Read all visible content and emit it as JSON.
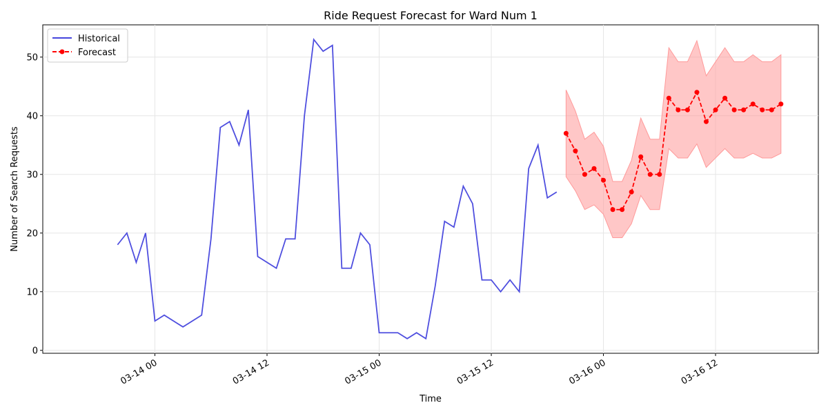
{
  "chart_data": {
    "type": "line",
    "title": "Ride Request Forecast for Ward Num 1",
    "xlabel": "Time",
    "ylabel": "Number of Search Requests",
    "x_axis": {
      "type": "time",
      "range": [
        "2025-03-13 12:00",
        "2025-03-16 23:00"
      ],
      "tick_values": [
        "2025-03-14 00:00",
        "2025-03-14 12:00",
        "2025-03-15 00:00",
        "2025-03-15 12:00",
        "2025-03-16 00:00",
        "2025-03-16 12:00"
      ],
      "tick_labels": [
        "03-14 00",
        "03-14 12",
        "03-15 00",
        "03-15 12",
        "03-16 00",
        "03-16 12"
      ]
    },
    "y_axis": {
      "range": [
        -0.5,
        55.5
      ],
      "ticks": [
        0,
        10,
        20,
        30,
        40,
        50
      ],
      "tick_labels": [
        "0",
        "10",
        "20",
        "30",
        "40",
        "50"
      ]
    },
    "grid": true,
    "legend": {
      "position": "top-left",
      "entries": [
        "Historical",
        "Forecast"
      ]
    },
    "series": [
      {
        "name": "Historical",
        "color": "#4444dd",
        "style": "solid",
        "x": [
          "2025-03-13 20:00",
          "2025-03-13 21:00",
          "2025-03-13 22:00",
          "2025-03-13 23:00",
          "2025-03-14 00:00",
          "2025-03-14 01:00",
          "2025-03-14 03:00",
          "2025-03-14 05:00",
          "2025-03-14 06:00",
          "2025-03-14 07:00",
          "2025-03-14 08:00",
          "2025-03-14 09:00",
          "2025-03-14 10:00",
          "2025-03-14 11:00",
          "2025-03-14 13:00",
          "2025-03-14 14:00",
          "2025-03-14 15:00",
          "2025-03-14 16:00",
          "2025-03-14 17:00",
          "2025-03-14 18:00",
          "2025-03-14 19:00",
          "2025-03-14 20:00",
          "2025-03-14 21:00",
          "2025-03-14 22:00",
          "2025-03-14 23:00",
          "2025-03-15 00:00",
          "2025-03-15 02:00",
          "2025-03-15 03:00",
          "2025-03-15 04:00",
          "2025-03-15 05:00",
          "2025-03-15 06:00",
          "2025-03-15 07:00",
          "2025-03-15 08:00",
          "2025-03-15 09:00",
          "2025-03-15 10:00",
          "2025-03-15 11:00",
          "2025-03-15 12:00",
          "2025-03-15 13:00",
          "2025-03-15 14:00",
          "2025-03-15 15:00",
          "2025-03-15 16:00",
          "2025-03-15 17:00",
          "2025-03-15 18:00",
          "2025-03-15 19:00"
        ],
        "values": [
          18,
          20,
          15,
          20,
          5,
          6,
          4,
          6,
          19,
          38,
          39,
          35,
          41,
          16,
          14,
          19,
          19,
          40,
          53,
          51,
          52,
          14,
          14,
          20,
          18,
          3,
          3,
          2,
          3,
          2,
          11,
          22,
          21,
          28,
          25,
          12,
          12,
          10,
          12,
          10,
          31,
          35,
          26,
          27
        ]
      },
      {
        "name": "Forecast",
        "color": "#ff0000",
        "style": "dashed",
        "marker": "circle",
        "x": [
          "2025-03-15 20:00",
          "2025-03-15 21:00",
          "2025-03-15 22:00",
          "2025-03-15 23:00",
          "2025-03-16 00:00",
          "2025-03-16 01:00",
          "2025-03-16 02:00",
          "2025-03-16 03:00",
          "2025-03-16 04:00",
          "2025-03-16 05:00",
          "2025-03-16 06:00",
          "2025-03-16 07:00",
          "2025-03-16 08:00",
          "2025-03-16 09:00",
          "2025-03-16 10:00",
          "2025-03-16 11:00",
          "2025-03-16 12:00",
          "2025-03-16 13:00",
          "2025-03-16 14:00",
          "2025-03-16 15:00",
          "2025-03-16 16:00",
          "2025-03-16 17:00",
          "2025-03-16 18:00",
          "2025-03-16 19:00"
        ],
        "values": [
          37,
          34,
          30,
          31,
          29,
          24,
          24,
          27,
          33,
          30,
          30,
          43,
          41,
          41,
          44,
          39,
          41,
          43,
          41,
          41,
          42,
          41,
          41,
          42
        ],
        "band_upper": [
          44.4,
          40.8,
          36.0,
          37.2,
          34.8,
          28.8,
          28.8,
          32.4,
          39.6,
          36.0,
          36.0,
          51.6,
          49.2,
          49.2,
          52.8,
          46.8,
          49.2,
          51.6,
          49.2,
          49.2,
          50.4,
          49.2,
          49.2,
          50.4
        ],
        "band_lower": [
          29.6,
          27.2,
          24.0,
          24.8,
          23.2,
          19.2,
          19.2,
          21.6,
          26.4,
          24.0,
          24.0,
          34.4,
          32.8,
          32.8,
          35.2,
          31.2,
          32.8,
          34.4,
          32.8,
          32.8,
          33.6,
          32.8,
          32.8,
          33.6
        ],
        "band_color": "#ff9999"
      }
    ]
  }
}
